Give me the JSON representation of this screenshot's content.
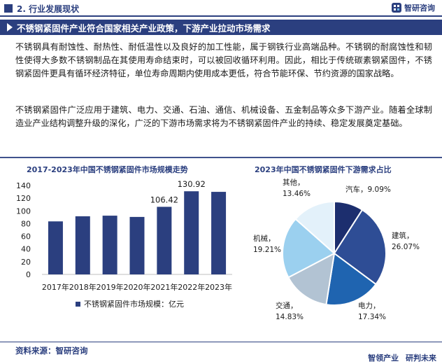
{
  "header": {
    "section_title": "2. 行业发展现状",
    "brand_name": "智研咨询",
    "brand_logo_icon": "zhiyan-logo-icon"
  },
  "banner": {
    "title": "不锈钢紧固件产业符合国家相关产业政策，下游产业拉动市场需求"
  },
  "body": {
    "paragraph1": "不锈钢具有耐蚀性、耐热性、耐低温性以及良好的加工性能，属于钢铁行业高端品种。不锈钢的耐腐蚀性和韧性使得大多数不锈钢制品在其使用寿命结束时，可以被回收循环利用。因此，相比于传统碳素钢紧固件，不锈钢紧固件更具有循环经济特征，单位寿命周期内使用成本更低，符合节能环保、节约资源的国家战略。",
    "paragraph2": "不锈钢紧固件广泛应用于建筑、电力、交通、石油、通信、机械设备、五金制品等众多下游产业。随着全球制造业产业结构调整升级的深化，广泛的下游市场需求将为不锈钢紧固件产业的持续、稳定发展奠定基础。"
  },
  "colors": {
    "brand": "#2b3f7f",
    "bar": "#2b3f7f"
  },
  "chart_data": [
    {
      "type": "bar",
      "title": "2017-2023年中国不锈钢紧固件市场规模走势",
      "categories": [
        "2017年",
        "2018年",
        "2019年",
        "2020年",
        "2021年",
        "2022年",
        "2023年"
      ],
      "series": [
        {
          "name": "不锈钢紧固件市场规模：亿元",
          "values": [
            83.5,
            91.5,
            92.5,
            90.5,
            106.42,
            130.92,
            130.0
          ]
        }
      ],
      "data_labels": {
        "4": "106.42",
        "5": "130.92"
      },
      "ylim": [
        0,
        140
      ],
      "yticks": [
        "0",
        "20",
        "40",
        "60",
        "80",
        "100",
        "120",
        "140"
      ],
      "grid": false,
      "legend_position": "bottom"
    },
    {
      "type": "pie",
      "title": "2023年中国不锈钢紧固件下游需求占比",
      "slices": [
        {
          "label": "汽车",
          "value_text": "9.09%",
          "value": 9.09,
          "color": "#1c2e6e"
        },
        {
          "label": "建筑",
          "value_text": "26.07%",
          "value": 26.07,
          "color": "#2e4d95"
        },
        {
          "label": "电力",
          "value_text": "17.34%",
          "value": 17.34,
          "color": "#1f64b0"
        },
        {
          "label": "交通",
          "value_text": "14.83%",
          "value": 14.83,
          "color": "#b2c3d3"
        },
        {
          "label": "机械",
          "value_text": "19.21%",
          "value": 19.21,
          "color": "#9bd0ef"
        },
        {
          "label": "其他",
          "value_text": "13.46%",
          "value": 13.46,
          "color": "#e3f1fa"
        }
      ]
    }
  ],
  "footer": {
    "source": "资料来源：智研咨询",
    "slogan_left": "智领产业",
    "slogan_right": "研判未来"
  }
}
